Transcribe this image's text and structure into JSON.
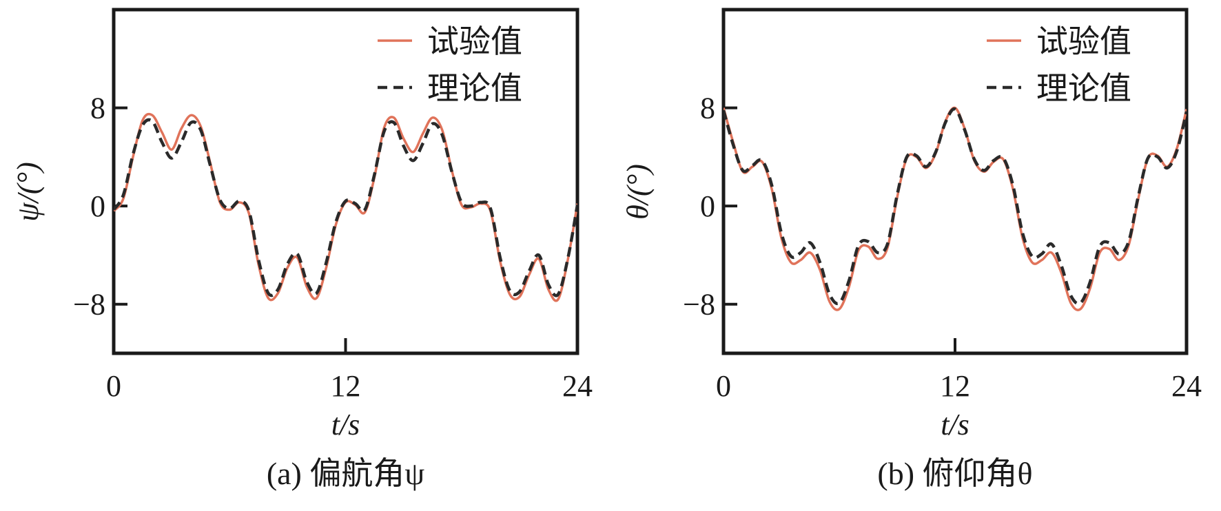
{
  "chart_data": [
    {
      "type": "line",
      "panel_caption": "(a) 偏航角ψ",
      "ylabel": "ψ/(°)",
      "xlabel": "t/s",
      "xlim": [
        0,
        24
      ],
      "ylim": [
        -12,
        16
      ],
      "xticks": [
        0,
        12,
        24
      ],
      "yticks": [
        -8,
        0,
        8
      ],
      "grid": false,
      "legend_position": "top-right",
      "series": [
        {
          "name": "试验值",
          "style": "solid",
          "color": "#e0735a",
          "x": [
            0,
            0.5,
            1,
            1.5,
            2,
            2.5,
            3,
            3.5,
            4,
            4.5,
            5,
            5.5,
            6,
            6.5,
            7,
            7.5,
            8,
            8.5,
            9,
            9.5,
            10,
            10.5,
            11,
            11.5,
            12,
            12.5,
            13,
            13.5,
            14,
            14.5,
            15,
            15.5,
            16,
            16.5,
            17,
            17.5,
            18,
            18.5,
            19,
            19.5,
            20,
            20.5,
            21,
            21.5,
            22,
            22.5,
            23,
            23.5,
            24
          ],
          "values": [
            -0.4,
            0.6,
            4.0,
            7.0,
            7.4,
            6.0,
            4.6,
            6.3,
            7.4,
            6.5,
            3.5,
            0.3,
            -0.3,
            0.3,
            -0.6,
            -4.8,
            -7.5,
            -7.1,
            -5.0,
            -4.2,
            -6.6,
            -7.5,
            -5.0,
            -1.5,
            0.3,
            0.1,
            -0.5,
            2.4,
            6.4,
            7.2,
            5.5,
            4.4,
            5.9,
            7.2,
            6.2,
            2.9,
            0.1,
            -0.1,
            0.2,
            -0.4,
            -4.5,
            -7.2,
            -7.4,
            -5.6,
            -4.3,
            -6.8,
            -7.6,
            -4.4,
            0.2
          ]
        },
        {
          "name": "理论值",
          "style": "dashed",
          "color": "#2a2a2a",
          "x": [
            0,
            0.5,
            1,
            1.5,
            2,
            2.5,
            3,
            3.5,
            4,
            4.5,
            5,
            5.5,
            6,
            6.5,
            7,
            7.5,
            8,
            8.5,
            9,
            9.5,
            10,
            10.5,
            11,
            11.5,
            12,
            12.5,
            13,
            13.5,
            14,
            14.5,
            15,
            15.5,
            16,
            16.5,
            17,
            17.5,
            18,
            18.5,
            19,
            19.5,
            20,
            20.5,
            21,
            21.5,
            22,
            22.5,
            23,
            23.5,
            24
          ],
          "values": [
            -0.3,
            0.9,
            4.2,
            6.6,
            6.9,
            5.2,
            3.9,
            5.2,
            6.8,
            6.2,
            3.3,
            0.5,
            -0.2,
            0.4,
            -0.4,
            -4.4,
            -7.1,
            -6.8,
            -4.7,
            -3.9,
            -6.2,
            -7.1,
            -4.6,
            -1.3,
            0.4,
            0.2,
            -0.3,
            2.6,
            6.1,
            6.8,
            4.9,
            3.7,
            5.1,
            6.7,
            5.8,
            2.8,
            0.3,
            0.0,
            0.3,
            -0.2,
            -4.2,
            -6.9,
            -7.0,
            -5.3,
            -4.0,
            -6.4,
            -7.2,
            -4.3,
            0.1
          ]
        }
      ]
    },
    {
      "type": "line",
      "panel_caption": "(b) 俯仰角θ",
      "ylabel": "θ/(°)",
      "xlabel": "t/s",
      "xlim": [
        0,
        24
      ],
      "ylim": [
        -12,
        16
      ],
      "xticks": [
        0,
        12,
        24
      ],
      "yticks": [
        -8,
        0,
        8
      ],
      "grid": false,
      "legend_position": "top-right",
      "series": [
        {
          "name": "试验值",
          "style": "solid",
          "color": "#e0735a",
          "x": [
            0,
            0.5,
            1,
            1.5,
            2,
            2.5,
            3,
            3.5,
            4,
            4.5,
            5,
            5.5,
            6,
            6.5,
            7,
            7.5,
            8,
            8.5,
            9,
            9.5,
            10,
            10.5,
            11,
            11.5,
            12,
            12.5,
            13,
            13.5,
            14,
            14.5,
            15,
            15.5,
            16,
            16.5,
            17,
            17.5,
            18,
            18.5,
            19,
            19.5,
            20,
            20.5,
            21,
            21.5,
            22,
            22.5,
            23,
            23.5,
            24
          ],
          "values": [
            8.0,
            5.2,
            2.8,
            3.2,
            3.6,
            1.4,
            -2.6,
            -4.6,
            -4.4,
            -3.8,
            -5.2,
            -7.8,
            -8.4,
            -6.6,
            -3.6,
            -3.3,
            -4.3,
            -3.4,
            0.7,
            3.9,
            4.0,
            3.1,
            4.3,
            6.9,
            8.0,
            6.3,
            3.7,
            2.8,
            3.6,
            3.8,
            1.4,
            -2.6,
            -4.6,
            -4.4,
            -3.8,
            -5.4,
            -7.9,
            -8.4,
            -6.7,
            -3.8,
            -3.5,
            -4.4,
            -3.2,
            0.6,
            3.9,
            4.1,
            3.2,
            4.7,
            7.9
          ]
        },
        {
          "name": "理论值",
          "style": "dashed",
          "color": "#2a2a2a",
          "x": [
            0,
            0.5,
            1,
            1.5,
            2,
            2.5,
            3,
            3.5,
            4,
            4.5,
            5,
            5.5,
            6,
            6.5,
            7,
            7.5,
            8,
            8.5,
            9,
            9.5,
            10,
            10.5,
            11,
            11.5,
            12,
            12.5,
            13,
            13.5,
            14,
            14.5,
            15,
            15.5,
            16,
            16.5,
            17,
            17.5,
            18,
            18.5,
            19,
            19.5,
            20,
            20.5,
            21,
            21.5,
            22,
            22.5,
            23,
            23.5,
            24
          ],
          "values": [
            7.8,
            5.0,
            2.9,
            3.3,
            3.7,
            1.7,
            -2.2,
            -4.1,
            -3.8,
            -3.0,
            -4.6,
            -7.2,
            -7.9,
            -6.1,
            -3.2,
            -2.9,
            -3.8,
            -3.1,
            0.9,
            4.0,
            4.1,
            3.2,
            4.4,
            6.8,
            7.9,
            6.2,
            3.8,
            2.9,
            3.7,
            3.9,
            1.7,
            -2.2,
            -4.1,
            -3.9,
            -3.1,
            -4.8,
            -7.3,
            -7.9,
            -6.2,
            -3.3,
            -3.0,
            -3.9,
            -2.9,
            0.8,
            3.9,
            4.0,
            3.1,
            4.5,
            7.7
          ]
        }
      ]
    }
  ]
}
